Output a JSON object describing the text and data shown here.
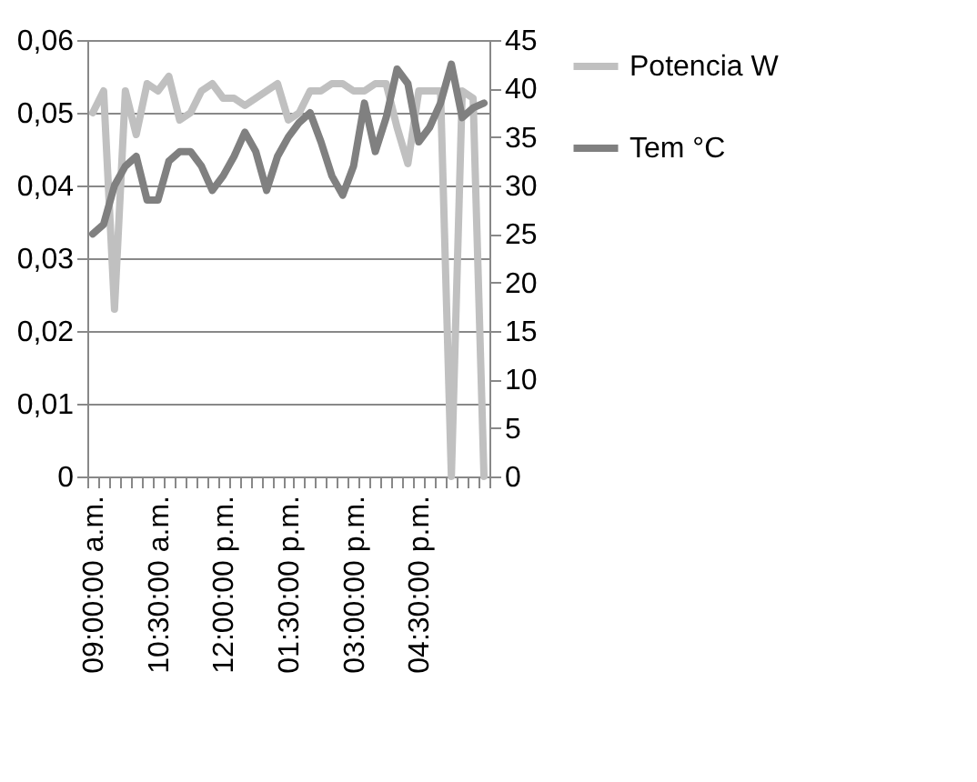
{
  "chart_data": {
    "type": "line",
    "categories": [
      "09:00:00 a.m.",
      null,
      null,
      null,
      null,
      null,
      "10:30:00 a.m.",
      null,
      null,
      null,
      null,
      null,
      "12:00:00 p.m.",
      null,
      null,
      null,
      null,
      null,
      "01:30:00 p.m.",
      null,
      null,
      null,
      null,
      null,
      "03:00:00 p.m.",
      null,
      null,
      null,
      null,
      null,
      "04:30:00 p.m.",
      null,
      null,
      null,
      null,
      null,
      null
    ],
    "series": [
      {
        "name": "Potencia W",
        "color": "#c0c0c0",
        "values": [
          0.05,
          0.053,
          0.023,
          0.053,
          0.047,
          0.054,
          0.053,
          0.055,
          0.049,
          0.05,
          0.053,
          0.054,
          0.052,
          0.052,
          0.051,
          0.052,
          0.053,
          0.054,
          0.049,
          0.05,
          0.053,
          0.053,
          0.054,
          0.054,
          0.053,
          0.053,
          0.054,
          0.054,
          0.048,
          0.043,
          0.053,
          0.053,
          0.053,
          0,
          0.053,
          0.052,
          0
        ]
      },
      {
        "name": "Tem °C",
        "color": "#808080",
        "axis": "y2",
        "values": [
          25,
          26,
          30,
          32,
          33,
          28.5,
          28.5,
          32.5,
          33.5,
          33.5,
          32,
          29.5,
          31,
          33,
          35.5,
          33.5,
          29.5,
          33,
          35,
          36.5,
          37.5,
          34.5,
          31,
          29,
          32,
          38.5,
          33.5,
          37,
          42,
          40.5,
          34.5,
          36,
          38.5,
          42.5,
          37,
          38,
          38.5
        ]
      }
    ],
    "ylim": [
      0,
      0.06
    ],
    "yticks": [
      0,
      {
        "value": 0.01,
        "label": "0,01"
      },
      {
        "value": 0.02,
        "label": "0,02"
      },
      {
        "value": 0.03,
        "label": "0,03"
      },
      {
        "value": 0.04,
        "label": "0,04"
      },
      {
        "value": 0.05,
        "label": "0,05"
      },
      {
        "value": 0.06,
        "label": "0,06"
      }
    ],
    "y2lim": [
      0,
      45
    ],
    "y2ticks": [
      0,
      5,
      10,
      15,
      20,
      25,
      30,
      35,
      40,
      45
    ],
    "grid": "y",
    "legend": "right",
    "marker": "none",
    "line_style": "solid"
  }
}
